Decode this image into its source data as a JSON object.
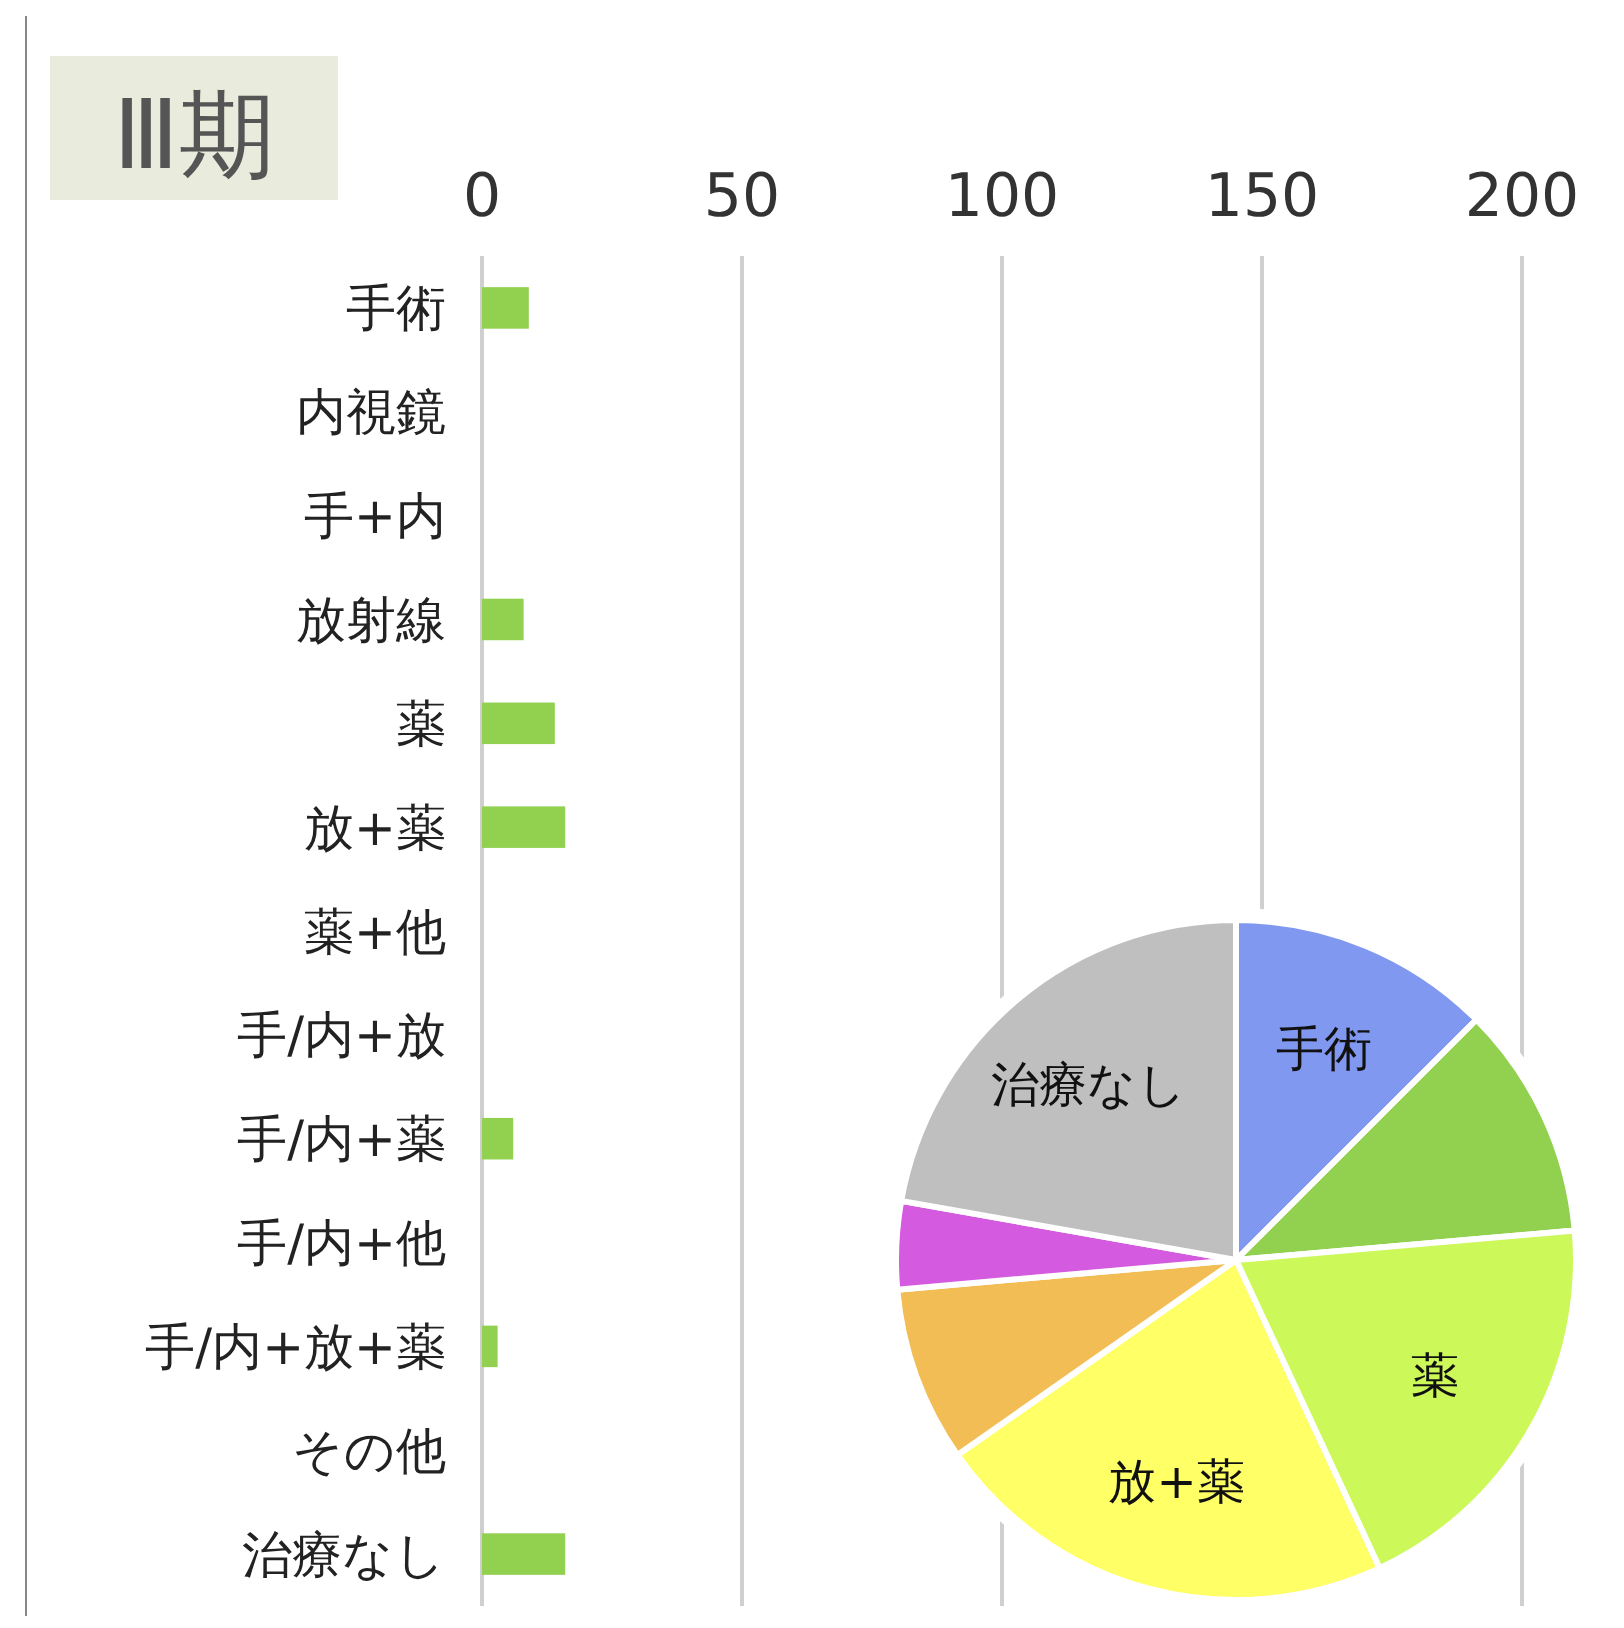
{
  "chart_data": [
    {
      "type": "bar",
      "title": "Ⅲ期",
      "orientation": "horizontal",
      "categories": [
        "手術",
        "内視鏡",
        "手+内",
        "放射線",
        "薬",
        "放+薬",
        "薬+他",
        "手/内+放",
        "手/内+薬",
        "手/内+他",
        "手/内+放+薬",
        "その他",
        "治療なし"
      ],
      "values": [
        9,
        0,
        0,
        8,
        14,
        16,
        0,
        0,
        6,
        0,
        3,
        0,
        16
      ],
      "color": "#92d050",
      "xlim": [
        0,
        200
      ],
      "xticks": [
        0,
        50,
        100,
        150,
        200
      ],
      "grid": "x"
    },
    {
      "type": "pie",
      "categories": [
        "手術",
        null,
        "薬",
        "放+薬",
        null,
        null,
        "治療なし"
      ],
      "values": [
        12.5,
        11.12,
        19.44,
        22.22,
        8.33,
        4.17,
        22.22
      ],
      "colors": [
        "#8098f0",
        "#92d050",
        "#ccf85a",
        "#ffff66",
        "#f2bd55",
        "#d45ae0",
        "#bfbfbf"
      ]
    }
  ]
}
